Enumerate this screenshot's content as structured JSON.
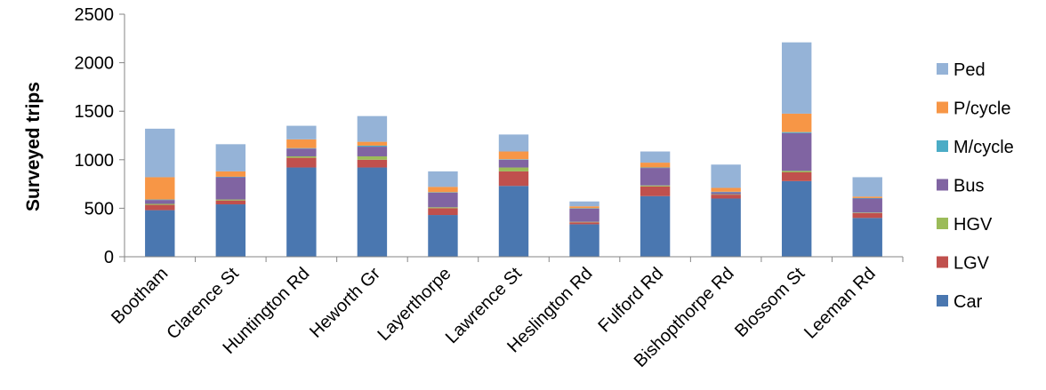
{
  "chart_data": {
    "type": "bar",
    "stacked": true,
    "ylabel": "Surveyed trips",
    "xlabel": "",
    "ylim": [
      0,
      2500
    ],
    "yticks": [
      0,
      500,
      1000,
      1500,
      2000,
      2500
    ],
    "grid": false,
    "legend_position": "right",
    "categories": [
      "Bootham",
      "Clarence St",
      "Huntington Rd",
      "Heworth Gr",
      "Layerthorpe",
      "Lawrence St",
      "Heslington Rd",
      "Fulford Rd",
      "Bishopthorpe Rd",
      "Blossom St",
      "Leeman Rd"
    ],
    "series": [
      {
        "name": "Car",
        "color": "#4a77b0",
        "values": [
          480,
          540,
          920,
          920,
          430,
          730,
          335,
          625,
          600,
          780,
          400
        ]
      },
      {
        "name": "LGV",
        "color": "#c0504d",
        "values": [
          55,
          40,
          100,
          80,
          70,
          150,
          20,
          100,
          40,
          90,
          50
        ]
      },
      {
        "name": "HGV",
        "color": "#9bbb59",
        "values": [
          10,
          10,
          15,
          35,
          10,
          40,
          5,
          10,
          5,
          15,
          5
        ]
      },
      {
        "name": "Bus",
        "color": "#8064a2",
        "values": [
          40,
          230,
          80,
          100,
          150,
          80,
          135,
          180,
          20,
          390,
          145
        ]
      },
      {
        "name": "M/cycle",
        "color": "#4bacc6",
        "values": [
          5,
          5,
          5,
          10,
          5,
          5,
          5,
          5,
          5,
          10,
          5
        ]
      },
      {
        "name": "P/cycle",
        "color": "#f79646",
        "values": [
          230,
          55,
          90,
          40,
          55,
          80,
          20,
          50,
          40,
          190,
          15
        ]
      },
      {
        "name": "Ped",
        "color": "#95b3d7",
        "values": [
          500,
          280,
          140,
          265,
          160,
          175,
          50,
          115,
          240,
          735,
          200
        ]
      }
    ]
  }
}
